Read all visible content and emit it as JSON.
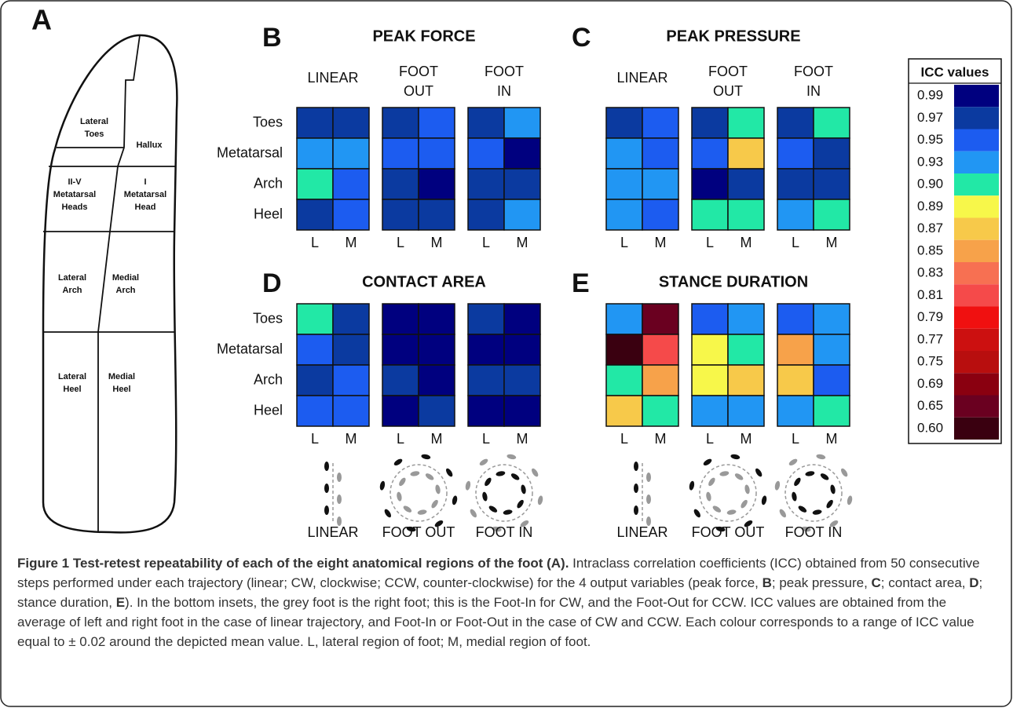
{
  "panel_a": {
    "letter": "A",
    "regions": [
      {
        "lines": [
          "Lateral",
          "Toes"
        ]
      },
      {
        "lines": [
          "Hallux"
        ]
      },
      {
        "lines": [
          "II-V",
          "Metatarsal",
          "Heads"
        ]
      },
      {
        "lines": [
          "I",
          "Metatarsal",
          "Head"
        ]
      },
      {
        "lines": [
          "Lateral",
          "Arch"
        ]
      },
      {
        "lines": [
          "Medial",
          "Arch"
        ]
      },
      {
        "lines": [
          "Lateral",
          "Heel"
        ]
      },
      {
        "lines": [
          "Medial",
          "Heel"
        ]
      }
    ]
  },
  "heatmaps": [
    {
      "letter": "B",
      "title": "PEAK FORCE",
      "row_labels": [
        "Toes",
        "Metatarsal",
        "Arch",
        "Heel"
      ],
      "col_labels": [
        "L",
        "M"
      ],
      "groups": [
        {
          "header": [
            "LINEAR"
          ],
          "cells": [
            [
              0.97,
              0.97
            ],
            [
              0.93,
              0.93
            ],
            [
              0.9,
              0.95
            ],
            [
              0.97,
              0.95
            ]
          ]
        },
        {
          "header": [
            "FOOT",
            "OUT"
          ],
          "cells": [
            [
              0.97,
              0.95
            ],
            [
              0.95,
              0.95
            ],
            [
              0.97,
              0.99
            ],
            [
              0.97,
              0.97
            ]
          ]
        },
        {
          "header": [
            "FOOT",
            "IN"
          ],
          "cells": [
            [
              0.97,
              0.93
            ],
            [
              0.95,
              0.99
            ],
            [
              0.97,
              0.97
            ],
            [
              0.97,
              0.93
            ]
          ]
        }
      ]
    },
    {
      "letter": "C",
      "title": "PEAK PRESSURE",
      "col_labels": [
        "L",
        "M"
      ],
      "groups": [
        {
          "header": [
            "LINEAR"
          ],
          "cells": [
            [
              0.97,
              0.95
            ],
            [
              0.93,
              0.95
            ],
            [
              0.93,
              0.93
            ],
            [
              0.93,
              0.95
            ]
          ]
        },
        {
          "header": [
            "FOOT",
            "OUT"
          ],
          "cells": [
            [
              0.97,
              0.9
            ],
            [
              0.95,
              0.87
            ],
            [
              0.99,
              0.97
            ],
            [
              0.9,
              0.9
            ]
          ]
        },
        {
          "header": [
            "FOOT",
            "IN"
          ],
          "cells": [
            [
              0.97,
              0.9
            ],
            [
              0.95,
              0.97
            ],
            [
              0.97,
              0.97
            ],
            [
              0.93,
              0.9
            ]
          ]
        }
      ]
    },
    {
      "letter": "D",
      "title": "CONTACT AREA",
      "row_labels": [
        "Toes",
        "Metatarsal",
        "Arch",
        "Heel"
      ],
      "col_labels": [
        "L",
        "M"
      ],
      "inset_labels": [
        "LINEAR",
        "FOOT OUT",
        "FOOT IN"
      ],
      "groups": [
        {
          "cells": [
            [
              0.9,
              0.97
            ],
            [
              0.95,
              0.97
            ],
            [
              0.97,
              0.95
            ],
            [
              0.95,
              0.95
            ]
          ]
        },
        {
          "cells": [
            [
              0.99,
              0.99
            ],
            [
              0.99,
              0.99
            ],
            [
              0.97,
              0.99
            ],
            [
              0.99,
              0.97
            ]
          ]
        },
        {
          "cells": [
            [
              0.97,
              0.99
            ],
            [
              0.99,
              0.99
            ],
            [
              0.97,
              0.97
            ],
            [
              0.99,
              0.99
            ]
          ]
        }
      ]
    },
    {
      "letter": "E",
      "title": "STANCE DURATION",
      "col_labels": [
        "L",
        "M"
      ],
      "inset_labels": [
        "LINEAR",
        "FOOT OUT",
        "FOOT IN"
      ],
      "groups": [
        {
          "cells": [
            [
              0.93,
              0.65
            ],
            [
              0.6,
              0.81
            ],
            [
              0.9,
              0.85
            ],
            [
              0.87,
              0.9
            ]
          ]
        },
        {
          "cells": [
            [
              0.95,
              0.93
            ],
            [
              0.89,
              0.9
            ],
            [
              0.89,
              0.87
            ],
            [
              0.93,
              0.93
            ]
          ]
        },
        {
          "cells": [
            [
              0.95,
              0.93
            ],
            [
              0.85,
              0.93
            ],
            [
              0.87,
              0.95
            ],
            [
              0.93,
              0.9
            ]
          ]
        }
      ]
    }
  ],
  "legend": {
    "title": "ICC values",
    "entries": [
      {
        "value": 0.99,
        "label": "0.99",
        "color": "#00007f"
      },
      {
        "value": 0.97,
        "label": "0.97",
        "color": "#0b3aa0"
      },
      {
        "value": 0.95,
        "label": "0.95",
        "color": "#1c5cf0"
      },
      {
        "value": 0.93,
        "label": "0.93",
        "color": "#2196f3"
      },
      {
        "value": 0.9,
        "label": "0.90",
        "color": "#22e8a6"
      },
      {
        "value": 0.89,
        "label": "0.89",
        "color": "#f7f74a"
      },
      {
        "value": 0.87,
        "label": "0.87",
        "color": "#f7c94a"
      },
      {
        "value": 0.85,
        "label": "0.85",
        "color": "#f7a24a"
      },
      {
        "value": 0.83,
        "label": "0.83",
        "color": "#f77052"
      },
      {
        "value": 0.81,
        "label": "0.81",
        "color": "#f54a4a"
      },
      {
        "value": 0.79,
        "label": "0.79",
        "color": "#f01010"
      },
      {
        "value": 0.77,
        "label": "0.77",
        "color": "#cc1010"
      },
      {
        "value": 0.75,
        "label": "0.75",
        "color": "#b80e0e"
      },
      {
        "value": 0.69,
        "label": "0.69",
        "color": "#8a0010"
      },
      {
        "value": 0.65,
        "label": "0.65",
        "color": "#6a0020"
      },
      {
        "value": 0.6,
        "label": "0.60",
        "color": "#3a0010"
      }
    ]
  },
  "caption": [
    {
      "text": "Figure 1 Test-retest repeatability of each of the eight anatomical regions of the foot (A).",
      "bold": true
    },
    {
      "text": " Intraclass correlation coefficients (ICC) obtained from 50 consecutive steps performed under each trajectory (linear; CW, clockwise; CCW, counter-clockwise) for the 4 output variables (peak force, ",
      "bold": false
    },
    {
      "text": "B",
      "bold": true
    },
    {
      "text": "; peak pressure, ",
      "bold": false
    },
    {
      "text": "C",
      "bold": true
    },
    {
      "text": "; contact area, ",
      "bold": false
    },
    {
      "text": "D",
      "bold": true
    },
    {
      "text": "; stance duration, ",
      "bold": false
    },
    {
      "text": "E",
      "bold": true
    },
    {
      "text": "). In the bottom insets, the grey foot is the right foot; this is the Foot-In for CW, and the Foot-Out for CCW. ICC values are obtained from the average of left and right foot in the case of linear trajectory, and Foot-In or Foot-Out in the case of CW and CCW. Each colour corresponds to a range of ICC value equal to ± 0.02 around the depicted mean value. L, lateral region of foot; M, medial region of foot.",
      "bold": false
    }
  ]
}
